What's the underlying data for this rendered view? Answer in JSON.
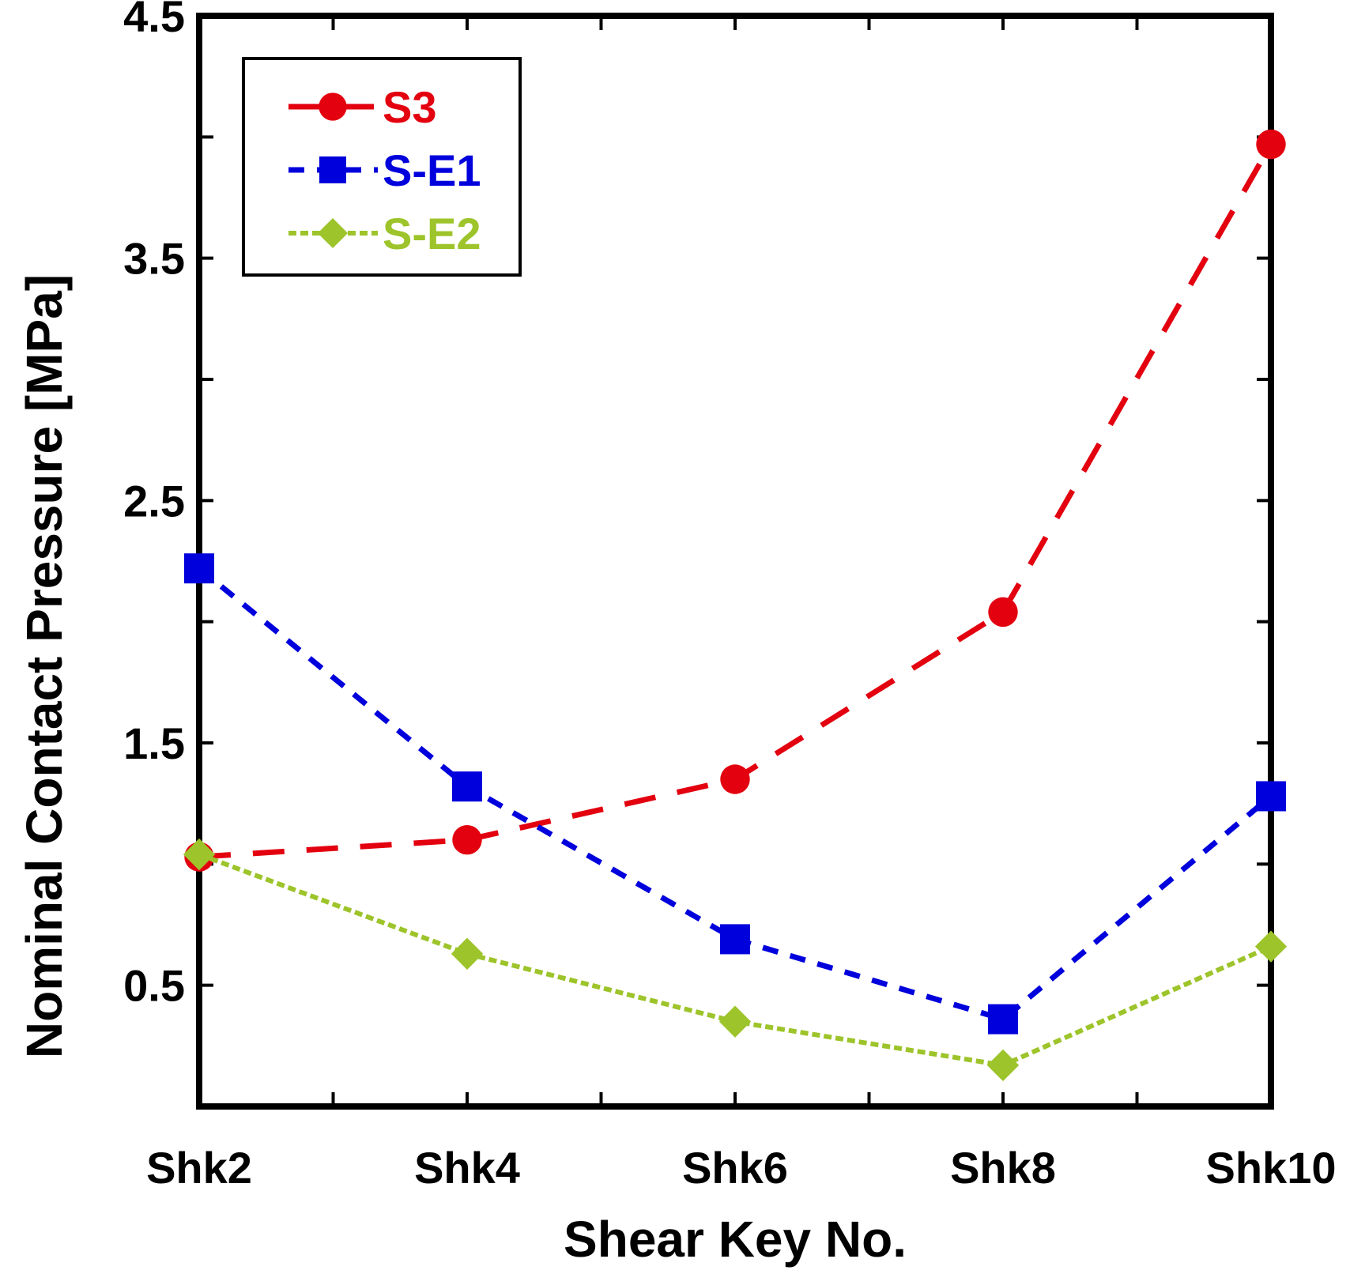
{
  "chart_data": {
    "type": "line",
    "xlabel": "Shear Key No.",
    "ylabel": "Nominal Contact Pressure [MPa]",
    "categories": [
      "Shk2",
      "Shk4",
      "Shk6",
      "Shk8",
      "Shk10"
    ],
    "ylim": [
      0.0,
      4.5
    ],
    "yticks": [
      "0.5",
      "1.5",
      "2.5",
      "3.5",
      "4.5"
    ],
    "grid": false,
    "legend_position": "top-left",
    "series": [
      {
        "name": "S3",
        "color": "#e3000f",
        "marker": "circle",
        "dash": "dashed",
        "values": [
          1.03,
          1.1,
          1.35,
          2.04,
          3.97
        ]
      },
      {
        "name": "S-E1",
        "color": "#0000dc",
        "marker": "square",
        "dash": "short-dashed",
        "values": [
          2.22,
          1.32,
          0.69,
          0.36,
          1.28
        ]
      },
      {
        "name": "S-E2",
        "color": "#9dc42a",
        "marker": "diamond",
        "dash": "dotted",
        "values": [
          1.04,
          0.63,
          0.35,
          0.17,
          0.66
        ]
      }
    ]
  }
}
